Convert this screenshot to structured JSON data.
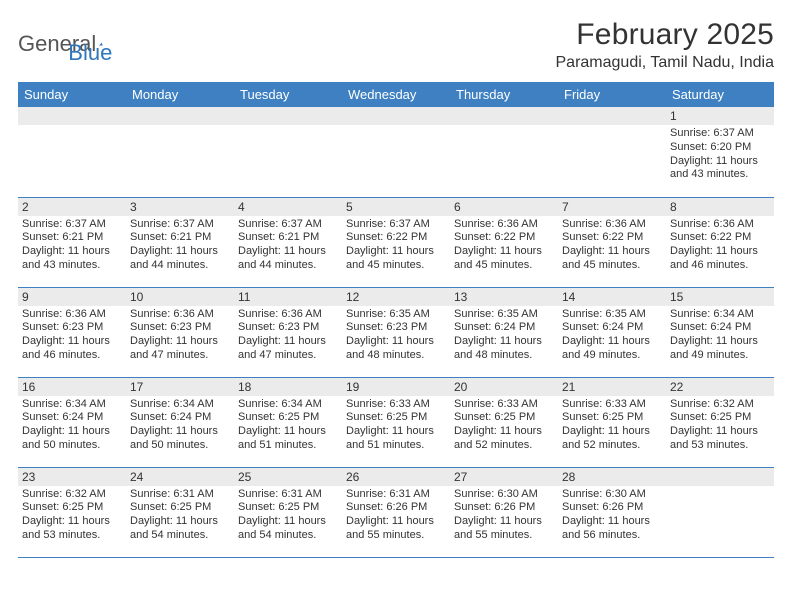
{
  "brand": {
    "part1": "General",
    "part2": "Blue",
    "text_color": "#555555",
    "accent_color": "#2f76bb"
  },
  "header": {
    "month_title": "February 2025",
    "location": "Paramagudi, Tamil Nadu, India"
  },
  "colors": {
    "header_bg": "#3e80c1",
    "header_text": "#ffffff",
    "row_divider": "#3e80c1",
    "daynum_bg": "#ebebeb",
    "body_text": "#333333",
    "page_bg": "#ffffff"
  },
  "weekdays": [
    "Sunday",
    "Monday",
    "Tuesday",
    "Wednesday",
    "Thursday",
    "Friday",
    "Saturday"
  ],
  "weeks": [
    [
      {
        "n": "",
        "sunrise": "",
        "sunset": "",
        "daylight": ""
      },
      {
        "n": "",
        "sunrise": "",
        "sunset": "",
        "daylight": ""
      },
      {
        "n": "",
        "sunrise": "",
        "sunset": "",
        "daylight": ""
      },
      {
        "n": "",
        "sunrise": "",
        "sunset": "",
        "daylight": ""
      },
      {
        "n": "",
        "sunrise": "",
        "sunset": "",
        "daylight": ""
      },
      {
        "n": "",
        "sunrise": "",
        "sunset": "",
        "daylight": ""
      },
      {
        "n": "1",
        "sunrise": "Sunrise: 6:37 AM",
        "sunset": "Sunset: 6:20 PM",
        "daylight": "Daylight: 11 hours and 43 minutes."
      }
    ],
    [
      {
        "n": "2",
        "sunrise": "Sunrise: 6:37 AM",
        "sunset": "Sunset: 6:21 PM",
        "daylight": "Daylight: 11 hours and 43 minutes."
      },
      {
        "n": "3",
        "sunrise": "Sunrise: 6:37 AM",
        "sunset": "Sunset: 6:21 PM",
        "daylight": "Daylight: 11 hours and 44 minutes."
      },
      {
        "n": "4",
        "sunrise": "Sunrise: 6:37 AM",
        "sunset": "Sunset: 6:21 PM",
        "daylight": "Daylight: 11 hours and 44 minutes."
      },
      {
        "n": "5",
        "sunrise": "Sunrise: 6:37 AM",
        "sunset": "Sunset: 6:22 PM",
        "daylight": "Daylight: 11 hours and 45 minutes."
      },
      {
        "n": "6",
        "sunrise": "Sunrise: 6:36 AM",
        "sunset": "Sunset: 6:22 PM",
        "daylight": "Daylight: 11 hours and 45 minutes."
      },
      {
        "n": "7",
        "sunrise": "Sunrise: 6:36 AM",
        "sunset": "Sunset: 6:22 PM",
        "daylight": "Daylight: 11 hours and 45 minutes."
      },
      {
        "n": "8",
        "sunrise": "Sunrise: 6:36 AM",
        "sunset": "Sunset: 6:22 PM",
        "daylight": "Daylight: 11 hours and 46 minutes."
      }
    ],
    [
      {
        "n": "9",
        "sunrise": "Sunrise: 6:36 AM",
        "sunset": "Sunset: 6:23 PM",
        "daylight": "Daylight: 11 hours and 46 minutes."
      },
      {
        "n": "10",
        "sunrise": "Sunrise: 6:36 AM",
        "sunset": "Sunset: 6:23 PM",
        "daylight": "Daylight: 11 hours and 47 minutes."
      },
      {
        "n": "11",
        "sunrise": "Sunrise: 6:36 AM",
        "sunset": "Sunset: 6:23 PM",
        "daylight": "Daylight: 11 hours and 47 minutes."
      },
      {
        "n": "12",
        "sunrise": "Sunrise: 6:35 AM",
        "sunset": "Sunset: 6:23 PM",
        "daylight": "Daylight: 11 hours and 48 minutes."
      },
      {
        "n": "13",
        "sunrise": "Sunrise: 6:35 AM",
        "sunset": "Sunset: 6:24 PM",
        "daylight": "Daylight: 11 hours and 48 minutes."
      },
      {
        "n": "14",
        "sunrise": "Sunrise: 6:35 AM",
        "sunset": "Sunset: 6:24 PM",
        "daylight": "Daylight: 11 hours and 49 minutes."
      },
      {
        "n": "15",
        "sunrise": "Sunrise: 6:34 AM",
        "sunset": "Sunset: 6:24 PM",
        "daylight": "Daylight: 11 hours and 49 minutes."
      }
    ],
    [
      {
        "n": "16",
        "sunrise": "Sunrise: 6:34 AM",
        "sunset": "Sunset: 6:24 PM",
        "daylight": "Daylight: 11 hours and 50 minutes."
      },
      {
        "n": "17",
        "sunrise": "Sunrise: 6:34 AM",
        "sunset": "Sunset: 6:24 PM",
        "daylight": "Daylight: 11 hours and 50 minutes."
      },
      {
        "n": "18",
        "sunrise": "Sunrise: 6:34 AM",
        "sunset": "Sunset: 6:25 PM",
        "daylight": "Daylight: 11 hours and 51 minutes."
      },
      {
        "n": "19",
        "sunrise": "Sunrise: 6:33 AM",
        "sunset": "Sunset: 6:25 PM",
        "daylight": "Daylight: 11 hours and 51 minutes."
      },
      {
        "n": "20",
        "sunrise": "Sunrise: 6:33 AM",
        "sunset": "Sunset: 6:25 PM",
        "daylight": "Daylight: 11 hours and 52 minutes."
      },
      {
        "n": "21",
        "sunrise": "Sunrise: 6:33 AM",
        "sunset": "Sunset: 6:25 PM",
        "daylight": "Daylight: 11 hours and 52 minutes."
      },
      {
        "n": "22",
        "sunrise": "Sunrise: 6:32 AM",
        "sunset": "Sunset: 6:25 PM",
        "daylight": "Daylight: 11 hours and 53 minutes."
      }
    ],
    [
      {
        "n": "23",
        "sunrise": "Sunrise: 6:32 AM",
        "sunset": "Sunset: 6:25 PM",
        "daylight": "Daylight: 11 hours and 53 minutes."
      },
      {
        "n": "24",
        "sunrise": "Sunrise: 6:31 AM",
        "sunset": "Sunset: 6:25 PM",
        "daylight": "Daylight: 11 hours and 54 minutes."
      },
      {
        "n": "25",
        "sunrise": "Sunrise: 6:31 AM",
        "sunset": "Sunset: 6:25 PM",
        "daylight": "Daylight: 11 hours and 54 minutes."
      },
      {
        "n": "26",
        "sunrise": "Sunrise: 6:31 AM",
        "sunset": "Sunset: 6:26 PM",
        "daylight": "Daylight: 11 hours and 55 minutes."
      },
      {
        "n": "27",
        "sunrise": "Sunrise: 6:30 AM",
        "sunset": "Sunset: 6:26 PM",
        "daylight": "Daylight: 11 hours and 55 minutes."
      },
      {
        "n": "28",
        "sunrise": "Sunrise: 6:30 AM",
        "sunset": "Sunset: 6:26 PM",
        "daylight": "Daylight: 11 hours and 56 minutes."
      },
      {
        "n": "",
        "sunrise": "",
        "sunset": "",
        "daylight": ""
      }
    ]
  ]
}
